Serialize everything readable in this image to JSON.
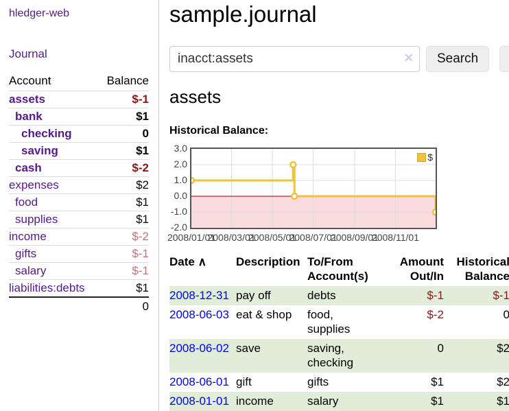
{
  "app": {
    "brand": "hledger-web",
    "nav_journal": "Journal"
  },
  "sidebar": {
    "header": {
      "account": "Account",
      "balance": "Balance"
    },
    "accounts": [
      {
        "name": "assets",
        "balance": "$-1"
      },
      {
        "name": "bank",
        "balance": "$1"
      },
      {
        "name": "checking",
        "balance": "0"
      },
      {
        "name": "saving",
        "balance": "$1"
      },
      {
        "name": "cash",
        "balance": "$-2"
      },
      {
        "name": "expenses",
        "balance": "$2"
      },
      {
        "name": "food",
        "balance": "$1"
      },
      {
        "name": "supplies",
        "balance": "$1"
      },
      {
        "name": "income",
        "balance": "$-2"
      },
      {
        "name": "gifts",
        "balance": "$-1"
      },
      {
        "name": "salary",
        "balance": "$-1"
      },
      {
        "name": "liabilities:debts",
        "balance": "$1"
      }
    ],
    "total": "0"
  },
  "main": {
    "title": "sample.journal",
    "search": {
      "value": "inacct:assets",
      "clear_icon": "✕",
      "button": "Search",
      "help_button": "?"
    },
    "account_heading": "assets",
    "chart_label": "Historical Balance:"
  },
  "chart_data": {
    "type": "line",
    "title": "Historical Balance",
    "step": true,
    "series": [
      {
        "name": "$",
        "color": "#edc240",
        "points": [
          {
            "x": "2008-01-01",
            "y": 1
          },
          {
            "x": "2008-06-01",
            "y": 2
          },
          {
            "x": "2008-06-03",
            "y": 0
          },
          {
            "x": "2008-12-31",
            "y": -1
          }
        ]
      }
    ],
    "ylim": [
      -2,
      3
    ],
    "yticks": [
      3.0,
      2.0,
      1.0,
      0.0,
      -1.0,
      -2.0
    ],
    "xticks": [
      {
        "label": "2008/01/01",
        "date": "2008-01-01"
      },
      {
        "label": "2008/03/01",
        "date": "2008-03-01"
      },
      {
        "label": "2008/05/01",
        "date": "2008-05-01"
      },
      {
        "label": "2008/07/01",
        "date": "2008-07-01"
      },
      {
        "label": "2008/09/01",
        "date": "2008-09-01"
      },
      {
        "label": "2008/11/01",
        "date": "2008-11-01"
      }
    ],
    "xrange": [
      "2008-01-01",
      "2008-12-31"
    ],
    "grid": true,
    "legend_position": "top-right",
    "grid_color": "#dddddd",
    "border_color": "#545454",
    "negative_region_color": "#f9dbdb",
    "zero_line_color": "#8b0000"
  },
  "register": {
    "sort_icon": "∧",
    "headers": {
      "date": "Date",
      "description": "Description",
      "accounts": "To/From Account(s)",
      "amount": "Amount Out/In",
      "balance": "Historical Balance"
    },
    "rows": [
      {
        "date": "2008-12-31",
        "description": "pay off",
        "accounts": "debts",
        "amount": "$-1",
        "balance": "$-1"
      },
      {
        "date": "2008-06-03",
        "description": "eat & shop",
        "accounts": "food, supplies",
        "amount": "$-2",
        "balance": "0"
      },
      {
        "date": "2008-06-02",
        "description": "save",
        "accounts": "saving, checking",
        "amount": "0",
        "balance": "$2"
      },
      {
        "date": "2008-06-01",
        "description": "gift",
        "accounts": "gifts",
        "amount": "$1",
        "balance": "$2"
      },
      {
        "date": "2008-01-01",
        "description": "income",
        "accounts": "salary",
        "amount": "$1",
        "balance": "$1"
      }
    ]
  },
  "colors": {
    "link_visited_purple": "#551a8b",
    "link_blue": "#0000ee",
    "negative_red": "#8e1414",
    "negative_rose": "#bd7575",
    "row_green": "#dfedd9",
    "series_gold": "#edc240"
  }
}
